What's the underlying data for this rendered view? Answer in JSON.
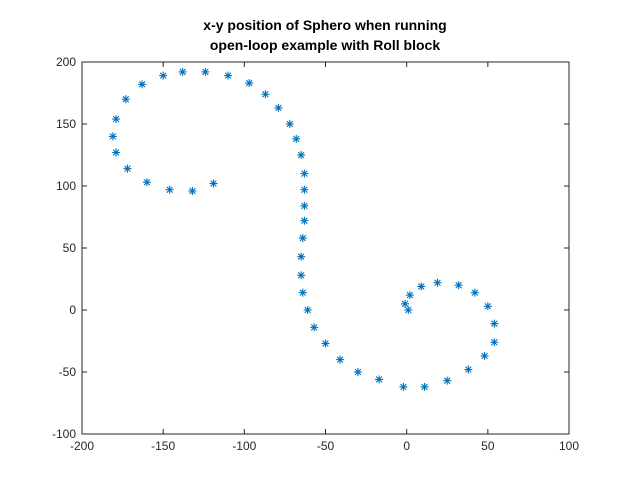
{
  "chart_data": {
    "type": "scatter",
    "title": [
      "x-y position of Sphero when running",
      "open-loop example with Roll block"
    ],
    "xlabel": "",
    "ylabel": "",
    "xlim": [
      -200,
      100
    ],
    "ylim": [
      -100,
      200
    ],
    "xticks": [
      -200,
      -150,
      -100,
      -50,
      0,
      50,
      100
    ],
    "yticks": [
      -100,
      -50,
      0,
      50,
      100,
      150,
      200
    ],
    "marker": "asterisk",
    "marker_color": "#0072BD",
    "grid": false,
    "legend": "none",
    "points": [
      {
        "x": -119,
        "y": 102
      },
      {
        "x": -132,
        "y": 96
      },
      {
        "x": -146,
        "y": 97
      },
      {
        "x": -160,
        "y": 103
      },
      {
        "x": -172,
        "y": 114
      },
      {
        "x": -179,
        "y": 127
      },
      {
        "x": -181,
        "y": 140
      },
      {
        "x": -179,
        "y": 154
      },
      {
        "x": -173,
        "y": 170
      },
      {
        "x": -163,
        "y": 182
      },
      {
        "x": -150,
        "y": 189
      },
      {
        "x": -138,
        "y": 192
      },
      {
        "x": -124,
        "y": 192
      },
      {
        "x": -110,
        "y": 189
      },
      {
        "x": -97,
        "y": 183
      },
      {
        "x": -87,
        "y": 174
      },
      {
        "x": -79,
        "y": 163
      },
      {
        "x": -72,
        "y": 150
      },
      {
        "x": -68,
        "y": 138
      },
      {
        "x": -65,
        "y": 125
      },
      {
        "x": -63,
        "y": 110
      },
      {
        "x": -63,
        "y": 97
      },
      {
        "x": -63,
        "y": 84
      },
      {
        "x": -63,
        "y": 72
      },
      {
        "x": -64,
        "y": 58
      },
      {
        "x": -65,
        "y": 43
      },
      {
        "x": -65,
        "y": 28
      },
      {
        "x": -64,
        "y": 14
      },
      {
        "x": -61,
        "y": 0
      },
      {
        "x": -57,
        "y": -14
      },
      {
        "x": -50,
        "y": -27
      },
      {
        "x": -41,
        "y": -40
      },
      {
        "x": -30,
        "y": -50
      },
      {
        "x": -17,
        "y": -56
      },
      {
        "x": -2,
        "y": -62
      },
      {
        "x": 11,
        "y": -62
      },
      {
        "x": 25,
        "y": -57
      },
      {
        "x": 38,
        "y": -48
      },
      {
        "x": 48,
        "y": -37
      },
      {
        "x": 54,
        "y": -26
      },
      {
        "x": 54,
        "y": -11
      },
      {
        "x": 50,
        "y": 3
      },
      {
        "x": 42,
        "y": 14
      },
      {
        "x": 32,
        "y": 20
      },
      {
        "x": 19,
        "y": 22
      },
      {
        "x": 9,
        "y": 19
      },
      {
        "x": 2,
        "y": 12
      },
      {
        "x": -1,
        "y": 5
      },
      {
        "x": 1,
        "y": 0
      }
    ]
  }
}
